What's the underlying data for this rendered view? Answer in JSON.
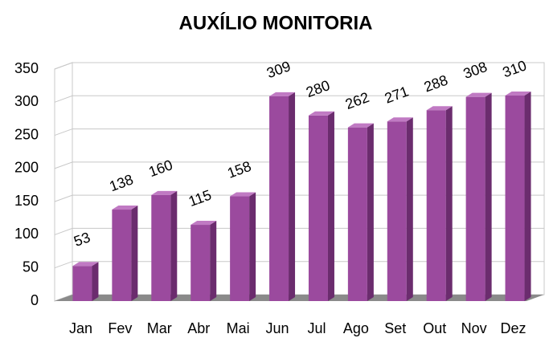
{
  "chart_data": {
    "type": "bar3d",
    "title": "AUXÍLIO MONITORIA",
    "categories": [
      "Jan",
      "Fev",
      "Mar",
      "Abr",
      "Mai",
      "Jun",
      "Jul",
      "Ago",
      "Set",
      "Out",
      "Nov",
      "Dez"
    ],
    "values": [
      53,
      138,
      160,
      115,
      158,
      309,
      280,
      262,
      271,
      288,
      308,
      310
    ],
    "color": "#9b4a9e",
    "ylim": [
      0,
      350
    ],
    "yticks": [
      0,
      50,
      100,
      150,
      200,
      250,
      300,
      350
    ],
    "grid": true
  }
}
